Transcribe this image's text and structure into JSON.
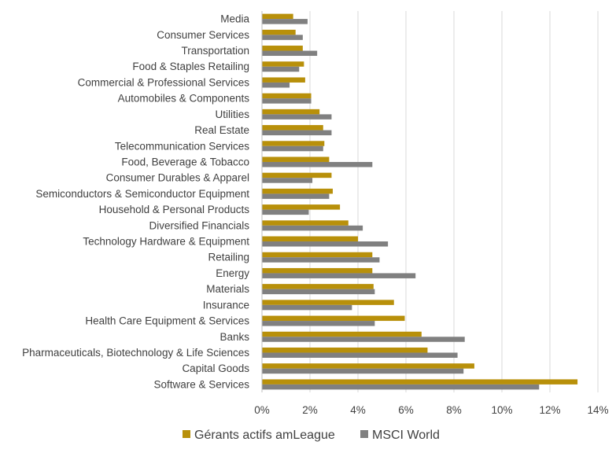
{
  "chart_data": {
    "type": "bar",
    "orientation": "horizontal",
    "categories": [
      "Media",
      "Consumer Services",
      "Transportation",
      "Food & Staples Retailing",
      "Commercial & Professional Services",
      "Automobiles & Components",
      "Utilities",
      "Real Estate",
      "Telecommunication Services",
      "Food, Beverage & Tobacco",
      "Consumer Durables & Apparel",
      "Semiconductors & Semiconductor Equipment",
      "Household & Personal Products",
      "Diversified Financials",
      "Technology Hardware & Equipment",
      "Retailing",
      "Energy",
      "Materials",
      "Insurance",
      "Health Care Equipment & Services",
      "Banks",
      "Pharmaceuticals, Biotechnology & Life Sciences",
      "Capital Goods",
      "Software & Services"
    ],
    "series": [
      {
        "name": "Gérants actifs amLeague",
        "color": "#B8900A",
        "values": [
          1.3,
          1.4,
          1.7,
          1.75,
          1.8,
          2.05,
          2.4,
          2.55,
          2.6,
          2.8,
          2.9,
          2.95,
          3.25,
          3.6,
          4.0,
          4.6,
          4.6,
          4.65,
          5.5,
          5.95,
          6.65,
          6.9,
          8.85,
          13.15
        ]
      },
      {
        "name": "MSCI World",
        "color": "#808080",
        "values": [
          1.9,
          1.7,
          2.3,
          1.55,
          1.15,
          2.05,
          2.9,
          2.9,
          2.55,
          4.6,
          2.1,
          2.8,
          1.95,
          4.2,
          5.25,
          4.9,
          6.4,
          4.7,
          3.75,
          4.7,
          8.45,
          8.15,
          8.4,
          11.55
        ]
      }
    ],
    "xlim": [
      0,
      14
    ],
    "x_ticks": [
      "0%",
      "2%",
      "4%",
      "6%",
      "8%",
      "10%",
      "12%",
      "14%"
    ],
    "x_tick_values": [
      0,
      2,
      4,
      6,
      8,
      10,
      12,
      14
    ],
    "grid": "vertical",
    "legend_position": "bottom",
    "title": "",
    "xlabel": "",
    "ylabel": ""
  }
}
